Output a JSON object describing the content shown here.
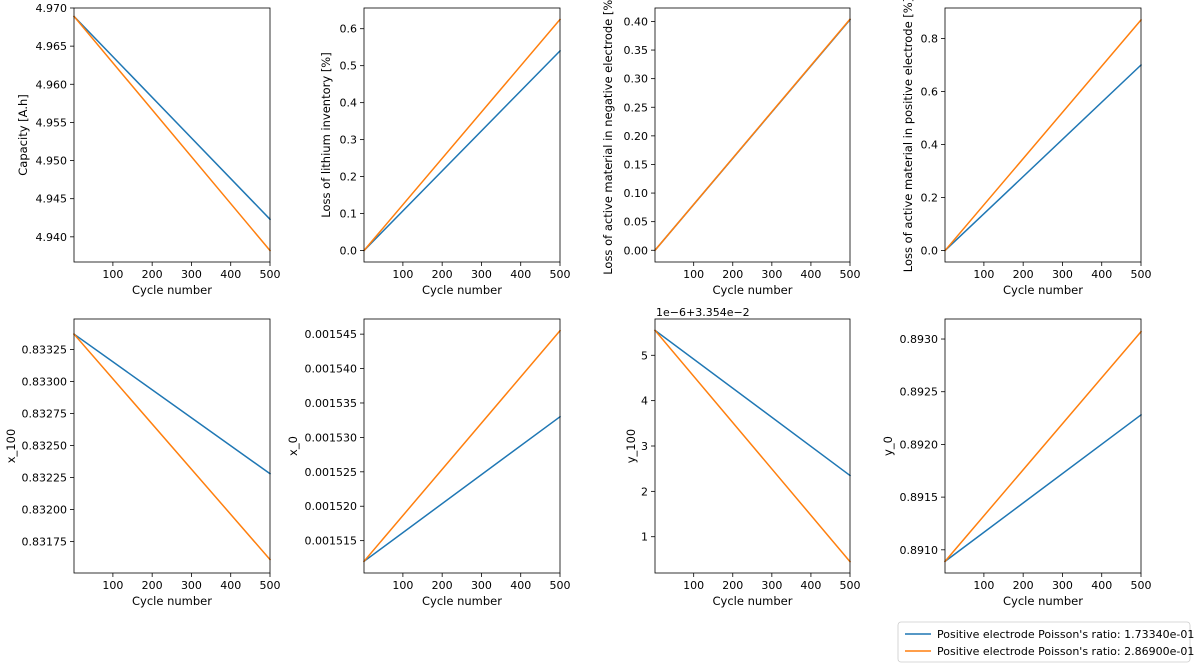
{
  "figure": {
    "legend": {
      "placement": "bottom-right",
      "entries": [
        {
          "label": "Positive electrode Poisson's ratio: 1.73340e-01",
          "color": "#1f77b4"
        },
        {
          "label": "Positive electrode Poisson's ratio: 2.86900e-01",
          "color": "#ff7f0e"
        }
      ]
    }
  },
  "chart_data": [
    {
      "type": "line",
      "xlabel": "Cycle number",
      "ylabel": "Capacity [A.h]",
      "xlim": [
        1,
        500
      ],
      "ylim": [
        4.9367,
        4.97
      ],
      "xticks": [
        100,
        200,
        300,
        400,
        500
      ],
      "yticks": [
        4.94,
        4.945,
        4.95,
        4.955,
        4.96,
        4.965,
        4.97
      ],
      "ytick_labels": [
        "4.940",
        "4.945",
        "4.950",
        "4.955",
        "4.960",
        "4.965",
        "4.970"
      ],
      "grid": false,
      "series": [
        {
          "name": "Positive electrode Poisson's ratio: 1.73340e-01",
          "color": "#1f77b4",
          "x": [
            1,
            500
          ],
          "y": [
            4.9689,
            4.9423
          ]
        },
        {
          "name": "Positive electrode Poisson's ratio: 2.86900e-01",
          "color": "#ff7f0e",
          "x": [
            1,
            500
          ],
          "y": [
            4.9689,
            4.9382
          ]
        }
      ]
    },
    {
      "type": "line",
      "xlabel": "Cycle number",
      "ylabel": "Loss of lithium inventory [%]",
      "xlim": [
        1,
        500
      ],
      "ylim": [
        -0.031,
        0.656
      ],
      "xticks": [
        100,
        200,
        300,
        400,
        500
      ],
      "yticks": [
        0.0,
        0.1,
        0.2,
        0.3,
        0.4,
        0.5,
        0.6
      ],
      "ytick_labels": [
        "0.0",
        "0.1",
        "0.2",
        "0.3",
        "0.4",
        "0.5",
        "0.6"
      ],
      "grid": false,
      "series": [
        {
          "name": "Positive electrode Poisson's ratio: 1.73340e-01",
          "color": "#1f77b4",
          "x": [
            1,
            500
          ],
          "y": [
            0.0,
            0.54
          ]
        },
        {
          "name": "Positive electrode Poisson's ratio: 2.86900e-01",
          "color": "#ff7f0e",
          "x": [
            1,
            500
          ],
          "y": [
            0.0,
            0.625
          ]
        }
      ]
    },
    {
      "type": "line",
      "xlabel": "Cycle number",
      "ylabel": "Loss of active material in negative electrode [%]",
      "xlim": [
        1,
        500
      ],
      "ylim": [
        -0.0205,
        0.4235
      ],
      "xticks": [
        100,
        200,
        300,
        400,
        500
      ],
      "yticks": [
        0.0,
        0.05,
        0.1,
        0.15,
        0.2,
        0.25,
        0.3,
        0.35,
        0.4
      ],
      "ytick_labels": [
        "0.00",
        "0.05",
        "0.10",
        "0.15",
        "0.20",
        "0.25",
        "0.30",
        "0.35",
        "0.40"
      ],
      "grid": false,
      "series": [
        {
          "name": "Positive electrode Poisson's ratio: 1.73340e-01",
          "color": "#1f77b4",
          "x": [
            1,
            500
          ],
          "y": [
            0.0,
            0.403
          ]
        },
        {
          "name": "Positive electrode Poisson's ratio: 2.86900e-01",
          "color": "#ff7f0e",
          "x": [
            1,
            500
          ],
          "y": [
            0.0,
            0.404
          ]
        }
      ]
    },
    {
      "type": "line",
      "xlabel": "Cycle number",
      "ylabel": "Loss of active material in positive electrode [%]",
      "xlim": [
        1,
        500
      ],
      "ylim": [
        -0.043,
        0.915
      ],
      "xticks": [
        100,
        200,
        300,
        400,
        500
      ],
      "yticks": [
        0.0,
        0.2,
        0.4,
        0.6,
        0.8
      ],
      "ytick_labels": [
        "0.0",
        "0.2",
        "0.4",
        "0.6",
        "0.8"
      ],
      "grid": false,
      "series": [
        {
          "name": "Positive electrode Poisson's ratio: 1.73340e-01",
          "color": "#1f77b4",
          "x": [
            1,
            500
          ],
          "y": [
            0.0,
            0.7
          ]
        },
        {
          "name": "Positive electrode Poisson's ratio: 2.86900e-01",
          "color": "#ff7f0e",
          "x": [
            1,
            500
          ],
          "y": [
            0.0,
            0.87
          ]
        }
      ]
    },
    {
      "type": "line",
      "xlabel": "Cycle number",
      "ylabel": "x_100",
      "xlim": [
        1,
        500
      ],
      "ylim": [
        0.831505,
        0.833488
      ],
      "xticks": [
        100,
        200,
        300,
        400,
        500
      ],
      "yticks": [
        0.83175,
        0.832,
        0.83225,
        0.8325,
        0.83275,
        0.833,
        0.83325
      ],
      "ytick_labels": [
        "0.83175",
        "0.83200",
        "0.83225",
        "0.83250",
        "0.83275",
        "0.83300",
        "0.83325"
      ],
      "grid": false,
      "series": [
        {
          "name": "Positive electrode Poisson's ratio: 1.73340e-01",
          "color": "#1f77b4",
          "x": [
            1,
            500
          ],
          "y": [
            0.83337,
            0.83228
          ]
        },
        {
          "name": "Positive electrode Poisson's ratio: 2.86900e-01",
          "color": "#ff7f0e",
          "x": [
            1,
            500
          ],
          "y": [
            0.83337,
            0.83161
          ]
        }
      ]
    },
    {
      "type": "line",
      "xlabel": "Cycle number",
      "ylabel": "x_0",
      "xlim": [
        1,
        500
      ],
      "ylim": [
        0.0015103,
        0.0015472
      ],
      "xticks": [
        100,
        200,
        300,
        400,
        500
      ],
      "yticks": [
        0.001515,
        0.00152,
        0.001525,
        0.00153,
        0.001535,
        0.00154,
        0.001545
      ],
      "ytick_labels": [
        "0.001515",
        "0.001520",
        "0.001525",
        "0.001530",
        "0.001535",
        "0.001540",
        "0.001545"
      ],
      "grid": false,
      "series": [
        {
          "name": "Positive electrode Poisson's ratio: 1.73340e-01",
          "color": "#1f77b4",
          "x": [
            1,
            500
          ],
          "y": [
            0.001512,
            0.001533
          ]
        },
        {
          "name": "Positive electrode Poisson's ratio: 2.86900e-01",
          "color": "#ff7f0e",
          "x": [
            1,
            500
          ],
          "y": [
            0.001512,
            0.0015455
          ]
        }
      ]
    },
    {
      "type": "line",
      "xlabel": "Cycle number",
      "ylabel": "y_100",
      "axis_offset_label": "1e−6+3.354e−2",
      "xlim": [
        1,
        500
      ],
      "ylim": [
        0.2,
        5.8
      ],
      "xticks": [
        100,
        200,
        300,
        400,
        500
      ],
      "yticks": [
        1,
        2,
        3,
        4,
        5
      ],
      "ytick_labels": [
        "1",
        "2",
        "3",
        "4",
        "5"
      ],
      "grid": false,
      "series": [
        {
          "name": "Positive electrode Poisson's ratio: 1.73340e-01",
          "color": "#1f77b4",
          "x": [
            1,
            500
          ],
          "y": [
            5.55,
            2.35
          ]
        },
        {
          "name": "Positive electrode Poisson's ratio: 2.86900e-01",
          "color": "#ff7f0e",
          "x": [
            1,
            500
          ],
          "y": [
            5.55,
            0.45
          ]
        }
      ]
    },
    {
      "type": "line",
      "xlabel": "Cycle number",
      "ylabel": "y_0",
      "xlim": [
        1,
        500
      ],
      "ylim": [
        0.89078,
        0.89319
      ],
      "xticks": [
        100,
        200,
        300,
        400,
        500
      ],
      "yticks": [
        0.891,
        0.8915,
        0.892,
        0.8925,
        0.893
      ],
      "ytick_labels": [
        "0.8910",
        "0.8915",
        "0.8920",
        "0.8925",
        "0.8930"
      ],
      "grid": false,
      "series": [
        {
          "name": "Positive electrode Poisson's ratio: 1.73340e-01",
          "color": "#1f77b4",
          "x": [
            1,
            500
          ],
          "y": [
            0.89089,
            0.89228
          ]
        },
        {
          "name": "Positive electrode Poisson's ratio: 2.86900e-01",
          "color": "#ff7f0e",
          "x": [
            1,
            500
          ],
          "y": [
            0.89089,
            0.89307
          ]
        }
      ]
    }
  ]
}
